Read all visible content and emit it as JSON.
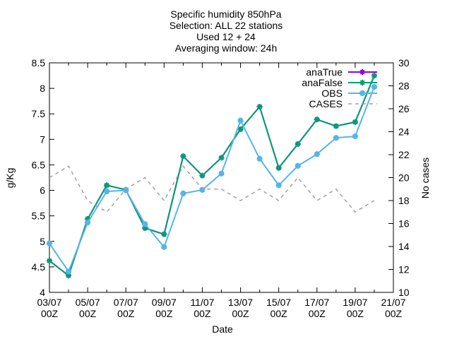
{
  "chart_data": {
    "type": "line",
    "title_lines": [
      "Specific humidity 850hPa",
      "Selection: ALL      22 stations",
      "Used 12 + 24",
      "Averaging window: 24h"
    ],
    "xlabel": "Date",
    "ylabel": "g/Kg",
    "y2label": "No cases",
    "ylim": [
      4,
      8.5
    ],
    "y2lim": [
      10,
      30
    ],
    "xlim": [
      "03/07 00Z",
      "21/07 00Z"
    ],
    "x_ticks": [
      {
        "line1": "03/07",
        "line2": "00Z"
      },
      {
        "line1": "05/07",
        "line2": "00Z"
      },
      {
        "line1": "07/07",
        "line2": "00Z"
      },
      {
        "line1": "09/07",
        "line2": "00Z"
      },
      {
        "line1": "11/07",
        "line2": "00Z"
      },
      {
        "line1": "13/07",
        "line2": "00Z"
      },
      {
        "line1": "15/07",
        "line2": "00Z"
      },
      {
        "line1": "17/07",
        "line2": "00Z"
      },
      {
        "line1": "19/07",
        "line2": "00Z"
      },
      {
        "line1": "21/07",
        "line2": "00Z"
      }
    ],
    "y_ticks": [
      "4",
      "4.5",
      "5",
      "5.5",
      "6",
      "6.5",
      "7",
      "7.5",
      "8",
      "8.5"
    ],
    "y2_ticks": [
      "10",
      "12",
      "14",
      "16",
      "18",
      "20",
      "22",
      "24",
      "26",
      "28",
      "30"
    ],
    "x": [
      "03/07 00Z",
      "04/07 00Z",
      "05/07 00Z",
      "06/07 00Z",
      "07/07 00Z",
      "08/07 00Z",
      "09/07 00Z",
      "10/07 00Z",
      "11/07 00Z",
      "12/07 00Z",
      "13/07 00Z",
      "14/07 00Z",
      "15/07 00Z",
      "16/07 00Z",
      "17/07 00Z",
      "18/07 00Z",
      "19/07 00Z",
      "20/07 00Z"
    ],
    "legend_position": "top-right",
    "grid": false,
    "series": [
      {
        "name": "anaTrue",
        "axis": "left",
        "color": "#9400d3",
        "style": "solid",
        "marker": "star",
        "values": [
          4.62,
          4.33,
          5.44,
          6.1,
          6.01,
          5.26,
          5.14,
          6.67,
          6.29,
          6.64,
          7.2,
          7.64,
          6.44,
          6.91,
          7.39,
          7.26,
          7.34,
          8.25
        ]
      },
      {
        "name": "anaFalse",
        "axis": "left",
        "color": "#009e73",
        "style": "solid",
        "marker": "star",
        "values": [
          4.62,
          4.33,
          5.44,
          6.1,
          6.01,
          5.26,
          5.14,
          6.67,
          6.29,
          6.64,
          7.2,
          7.64,
          6.44,
          6.91,
          7.39,
          7.26,
          7.34,
          8.25
        ]
      },
      {
        "name": "OBS",
        "axis": "left",
        "color": "#56b4e9",
        "style": "solid",
        "marker": "circle",
        "values": [
          4.96,
          4.41,
          5.37,
          5.98,
          6.0,
          5.34,
          4.89,
          5.94,
          6.01,
          6.33,
          7.37,
          6.62,
          6.1,
          6.48,
          6.71,
          7.03,
          7.06,
          8.03
        ]
      },
      {
        "name": "CASES",
        "axis": "right",
        "color": "#a0a0a0",
        "style": "dashed",
        "marker": "none",
        "values": [
          20,
          21,
          18,
          17,
          19,
          20,
          18,
          21,
          19,
          19,
          18,
          19,
          18,
          20,
          18,
          19,
          17,
          18
        ]
      }
    ]
  }
}
